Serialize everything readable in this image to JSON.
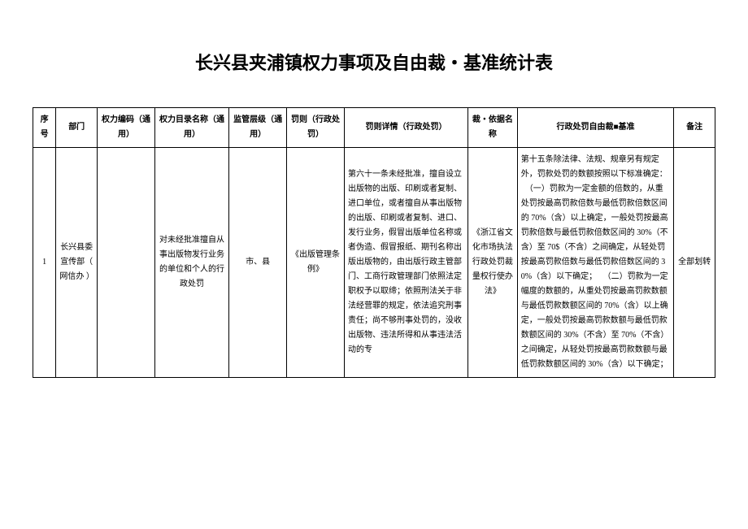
{
  "title": "长兴县夹浦镇权力事项及自由裁・基准统计表",
  "headers": {
    "seq": "序号",
    "dept": "部门",
    "code": "权力编码（通用）",
    "name": "权力目录名称（通用）",
    "level": "监管层级（通用）",
    "rule": "罚则（行政处罚）",
    "detail": "罚则详情（行政处罚）",
    "basis": "裁・依据名称",
    "std": "行政处罚自由裁■基准",
    "note": "备注"
  },
  "rows": [
    {
      "seq": "1",
      "dept": "长兴县委宣传部（ 网信办 ）",
      "code": "",
      "name": "对未经批准擅自从事出版物发行业务的单位和个人的行政处罚",
      "level": "市、县",
      "rule": "《出版管理条例》",
      "detail": "第六十一条未经批准，擅自设立出版物的出版、印刷或者复制、进口单位，或者擅自从事出版物的出版、印刷或者复制、进口、发行业务，假冒出版单位名称或者伪造、假冒报纸、期刊名称出版出版物的，由出版行政主管部门、工商行政管理部门依照法定职权予以取缔；依照刑法关于非法经营罪的规定，依法追究刑事责任；尚不够刑事处罚的，没收出版物、违法所得和从事违法活动的专",
      "basis": "《浙江省文化市场执法行政处罚裁量权行使办法》",
      "std": "第十五条除法律、法规、规章另有规定外，罚款处罚的数额按照以下标准确定：\n　（一）罚款为一定金额的倍数的，从重处罚按最高罚款倍数与最低罚款倍数区间的 70%（含）以上确定，一般处罚按最高罚款倍数与最低罚款倍数区间的 30%（不含）至 70$（不含）之间确定，从轻处罚按最高罚款倍数与最低罚款倍数区间的 30%（含）以下确定；\n　（二）罚款为一定幅度的数额的，从重处罚按最高罚款数额与最低罚款数额区间的 70%（含）以上确定，一般处罚按最高罚款数额与最低罚款数额区间的 30%（不含）至 70%（不含）之间确定，从轻处罚按最高罚款数额与最低罚款数额区间的 30%（含）以下确定；",
      "note": "全部划转"
    }
  ]
}
